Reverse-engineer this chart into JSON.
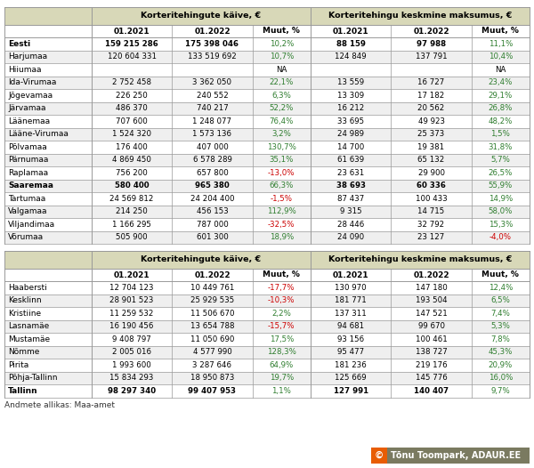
{
  "table1": {
    "header1": "Korteritehingute käive, €",
    "header2": "Korteritehingu keskmine maksumus, €",
    "col_headers": [
      "01.2021",
      "01.2022",
      "Muut, %",
      "01.2021",
      "01.2022",
      "Muut, %"
    ],
    "rows": [
      {
        "name": "Eesti",
        "bold": true,
        "v1": "159 215 286",
        "v2": "175 398 046",
        "p1": "10,2%",
        "v3": "88 159",
        "v4": "97 988",
        "p2": "11,1%"
      },
      {
        "name": "Harjumaa",
        "bold": false,
        "v1": "120 604 331",
        "v2": "133 519 692",
        "p1": "10,7%",
        "v3": "124 849",
        "v4": "137 791",
        "p2": "10,4%"
      },
      {
        "name": "Hiiumaa",
        "bold": false,
        "v1": "",
        "v2": "",
        "p1": "NA",
        "v3": "",
        "v4": "",
        "p2": "NA"
      },
      {
        "name": "Ida-Virumaa",
        "bold": false,
        "v1": "2 752 458",
        "v2": "3 362 050",
        "p1": "22,1%",
        "v3": "13 559",
        "v4": "16 727",
        "p2": "23,4%"
      },
      {
        "name": "Jõgevamaa",
        "bold": false,
        "v1": "226 250",
        "v2": "240 552",
        "p1": "6,3%",
        "v3": "13 309",
        "v4": "17 182",
        "p2": "29,1%"
      },
      {
        "name": "Järvamaa",
        "bold": false,
        "v1": "486 370",
        "v2": "740 217",
        "p1": "52,2%",
        "v3": "16 212",
        "v4": "20 562",
        "p2": "26,8%"
      },
      {
        "name": "Läänemaa",
        "bold": false,
        "v1": "707 600",
        "v2": "1 248 077",
        "p1": "76,4%",
        "v3": "33 695",
        "v4": "49 923",
        "p2": "48,2%"
      },
      {
        "name": "Lääne-Virumaa",
        "bold": false,
        "v1": "1 524 320",
        "v2": "1 573 136",
        "p1": "3,2%",
        "v3": "24 989",
        "v4": "25 373",
        "p2": "1,5%"
      },
      {
        "name": "Põlvamaa",
        "bold": false,
        "v1": "176 400",
        "v2": "407 000",
        "p1": "130,7%",
        "v3": "14 700",
        "v4": "19 381",
        "p2": "31,8%"
      },
      {
        "name": "Pärnumaa",
        "bold": false,
        "v1": "4 869 450",
        "v2": "6 578 289",
        "p1": "35,1%",
        "v3": "61 639",
        "v4": "65 132",
        "p2": "5,7%"
      },
      {
        "name": "Raplamaa",
        "bold": false,
        "v1": "756 200",
        "v2": "657 800",
        "p1": "-13,0%",
        "v3": "23 631",
        "v4": "29 900",
        "p2": "26,5%"
      },
      {
        "name": "Saaremaa",
        "bold": true,
        "v1": "580 400",
        "v2": "965 380",
        "p1": "66,3%",
        "v3": "38 693",
        "v4": "60 336",
        "p2": "55,9%"
      },
      {
        "name": "Tartumaa",
        "bold": false,
        "v1": "24 569 812",
        "v2": "24 204 400",
        "p1": "-1,5%",
        "v3": "87 437",
        "v4": "100 433",
        "p2": "14,9%"
      },
      {
        "name": "Valgamaa",
        "bold": false,
        "v1": "214 250",
        "v2": "456 153",
        "p1": "112,9%",
        "v3": "9 315",
        "v4": "14 715",
        "p2": "58,0%"
      },
      {
        "name": "Viljandimaa",
        "bold": false,
        "v1": "1 166 295",
        "v2": "787 000",
        "p1": "-32,5%",
        "v3": "28 446",
        "v4": "32 792",
        "p2": "15,3%"
      },
      {
        "name": "Võrumaa",
        "bold": false,
        "v1": "505 900",
        "v2": "601 300",
        "p1": "18,9%",
        "v3": "24 090",
        "v4": "23 127",
        "p2": "-4,0%"
      }
    ]
  },
  "table2": {
    "header1": "Korteritehingute käive, €",
    "header2": "Korteritehingu keskmine maksumus, €",
    "col_headers": [
      "01.2021",
      "01.2022",
      "Muut, %",
      "01.2021",
      "01.2022",
      "Muut, %"
    ],
    "rows": [
      {
        "name": "Haabersti",
        "bold": false,
        "v1": "12 704 123",
        "v2": "10 449 761",
        "p1": "-17,7%",
        "v3": "130 970",
        "v4": "147 180",
        "p2": "12,4%"
      },
      {
        "name": "Kesklinn",
        "bold": false,
        "v1": "28 901 523",
        "v2": "25 929 535",
        "p1": "-10,3%",
        "v3": "181 771",
        "v4": "193 504",
        "p2": "6,5%"
      },
      {
        "name": "Kristiine",
        "bold": false,
        "v1": "11 259 532",
        "v2": "11 506 670",
        "p1": "2,2%",
        "v3": "137 311",
        "v4": "147 521",
        "p2": "7,4%"
      },
      {
        "name": "Lasnamäe",
        "bold": false,
        "v1": "16 190 456",
        "v2": "13 654 788",
        "p1": "-15,7%",
        "v3": "94 681",
        "v4": "99 670",
        "p2": "5,3%"
      },
      {
        "name": "Mustamäe",
        "bold": false,
        "v1": "9 408 797",
        "v2": "11 050 690",
        "p1": "17,5%",
        "v3": "93 156",
        "v4": "100 461",
        "p2": "7,8%"
      },
      {
        "name": "Nõmme",
        "bold": false,
        "v1": "2 005 016",
        "v2": "4 577 990",
        "p1": "128,3%",
        "v3": "95 477",
        "v4": "138 727",
        "p2": "45,3%"
      },
      {
        "name": "Pirita",
        "bold": false,
        "v1": "1 993 600",
        "v2": "3 287 646",
        "p1": "64,9%",
        "v3": "181 236",
        "v4": "219 176",
        "p2": "20,9%"
      },
      {
        "name": "Põhja-Tallinn",
        "bold": false,
        "v1": "15 834 293",
        "v2": "18 950 873",
        "p1": "19,7%",
        "v3": "125 669",
        "v4": "145 776",
        "p2": "16,0%"
      },
      {
        "name": "Tallinn",
        "bold": true,
        "v1": "98 297 340",
        "v2": "99 407 953",
        "p1": "1,1%",
        "v3": "127 991",
        "v4": "140 407",
        "p2": "9,7%"
      }
    ]
  },
  "footer": "Andmete allikas: Maa-amet",
  "watermark_text": "Tõnu Toompark, ADAUR.EE",
  "bg_color": "#FFFFFF",
  "header_bg": "#D8D8B8",
  "subheader_bg": "#FFFFFF",
  "border_color": "#999999",
  "positive_color": "#2E7D2E",
  "negative_color": "#CC0000",
  "neutral_color": "#000000",
  "watermark_bg": "#7A7A60",
  "watermark_circle": "#E85D04",
  "col_widths_raw": [
    78,
    72,
    72,
    52,
    72,
    72,
    52
  ]
}
